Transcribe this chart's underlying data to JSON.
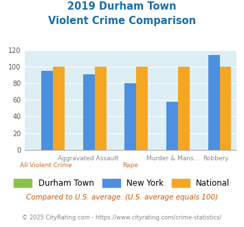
{
  "title_line1": "2019 Durham Town",
  "title_line2": "Violent Crime Comparison",
  "categories": [
    "All Violent Crime",
    "Aggravated Assault",
    "Rape",
    "Murder & Mans...",
    "Robbery"
  ],
  "top_labels": [
    "",
    "Aggravated Assault",
    "",
    "Murder & Mans...",
    "Robbery"
  ],
  "bot_labels": [
    "All Violent Crime",
    "",
    "Rape",
    "",
    ""
  ],
  "durham_values": [
    0,
    0,
    0,
    0,
    0
  ],
  "newyork_values": [
    95,
    91,
    80,
    58,
    114
  ],
  "national_values": [
    100,
    100,
    100,
    100,
    100
  ],
  "durham_color": "#8bc34a",
  "newyork_color": "#4d90e0",
  "national_color": "#f5a623",
  "bg_color": "#ddeef4",
  "title_color": "#1a6fa8",
  "top_label_color": "#888888",
  "bot_label_color": "#c87030",
  "ylabel_max": 120,
  "yticks": [
    0,
    20,
    40,
    60,
    80,
    100,
    120
  ],
  "footnote1": "Compared to U.S. average. (U.S. average equals 100)",
  "footnote2": "© 2025 CityRating.com - https://www.cityrating.com/crime-statistics/",
  "footnote1_color": "#cc5500",
  "footnote2_color": "#888888",
  "legend_labels": [
    "Durham Town",
    "New York",
    "National"
  ]
}
